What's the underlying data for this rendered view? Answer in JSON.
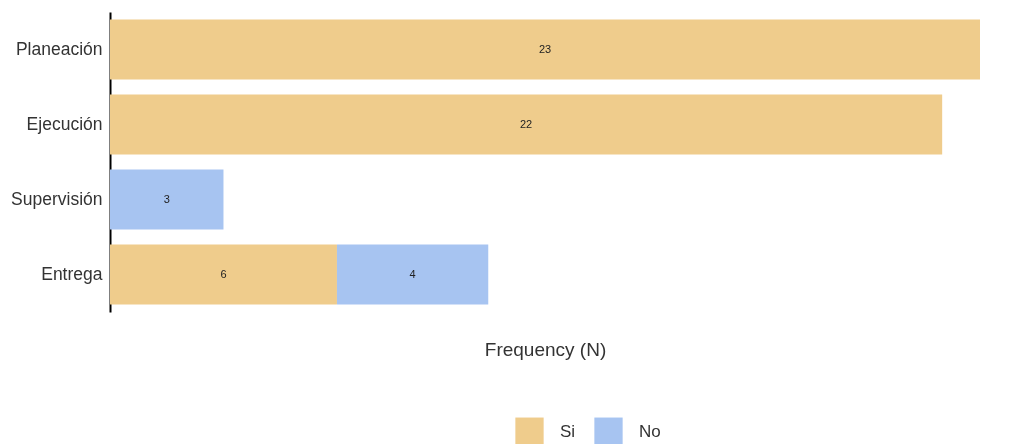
{
  "chart_data": {
    "type": "bar",
    "orientation": "horizontal",
    "stacked": true,
    "data_labels": true,
    "xlabel": "Frequency (N)",
    "legend": "bottom",
    "xlim": [
      0,
      23
    ],
    "tick_labels": "y",
    "categories": [
      "Planeación",
      "Ejecución",
      "Supervisión",
      "Entrega"
    ],
    "series": [
      {
        "name": "Si",
        "color": "#efcc8c",
        "values": [
          23,
          22,
          null,
          6
        ]
      },
      {
        "name": "No",
        "color": "#a7c4f1",
        "values": [
          null,
          null,
          3,
          4
        ]
      }
    ]
  }
}
